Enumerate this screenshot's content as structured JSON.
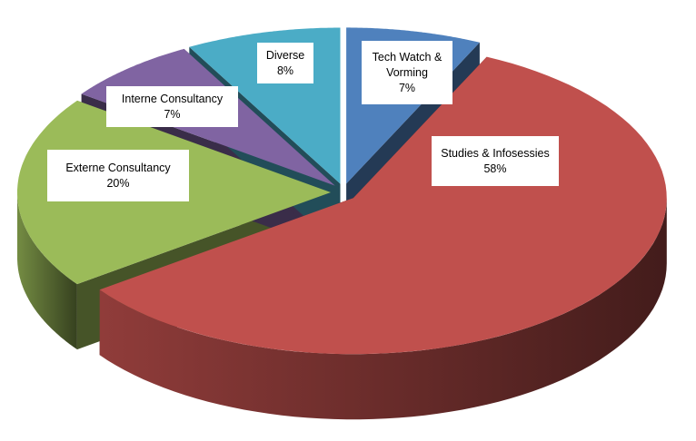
{
  "chart_data": {
    "type": "pie3d",
    "categories": [
      "Tech Watch & Vorming",
      "Studies & Infosessies",
      "Externe Consultancy",
      "Interne Consultancy",
      "Diverse"
    ],
    "values": [
      7,
      58,
      20,
      7,
      8
    ],
    "value_labels": [
      "7%",
      "58%",
      "20%",
      "7%",
      "8%"
    ],
    "colors": [
      "#4f81bd",
      "#c0504d",
      "#9bbb59",
      "#8064a2",
      "#4bacc6"
    ]
  }
}
